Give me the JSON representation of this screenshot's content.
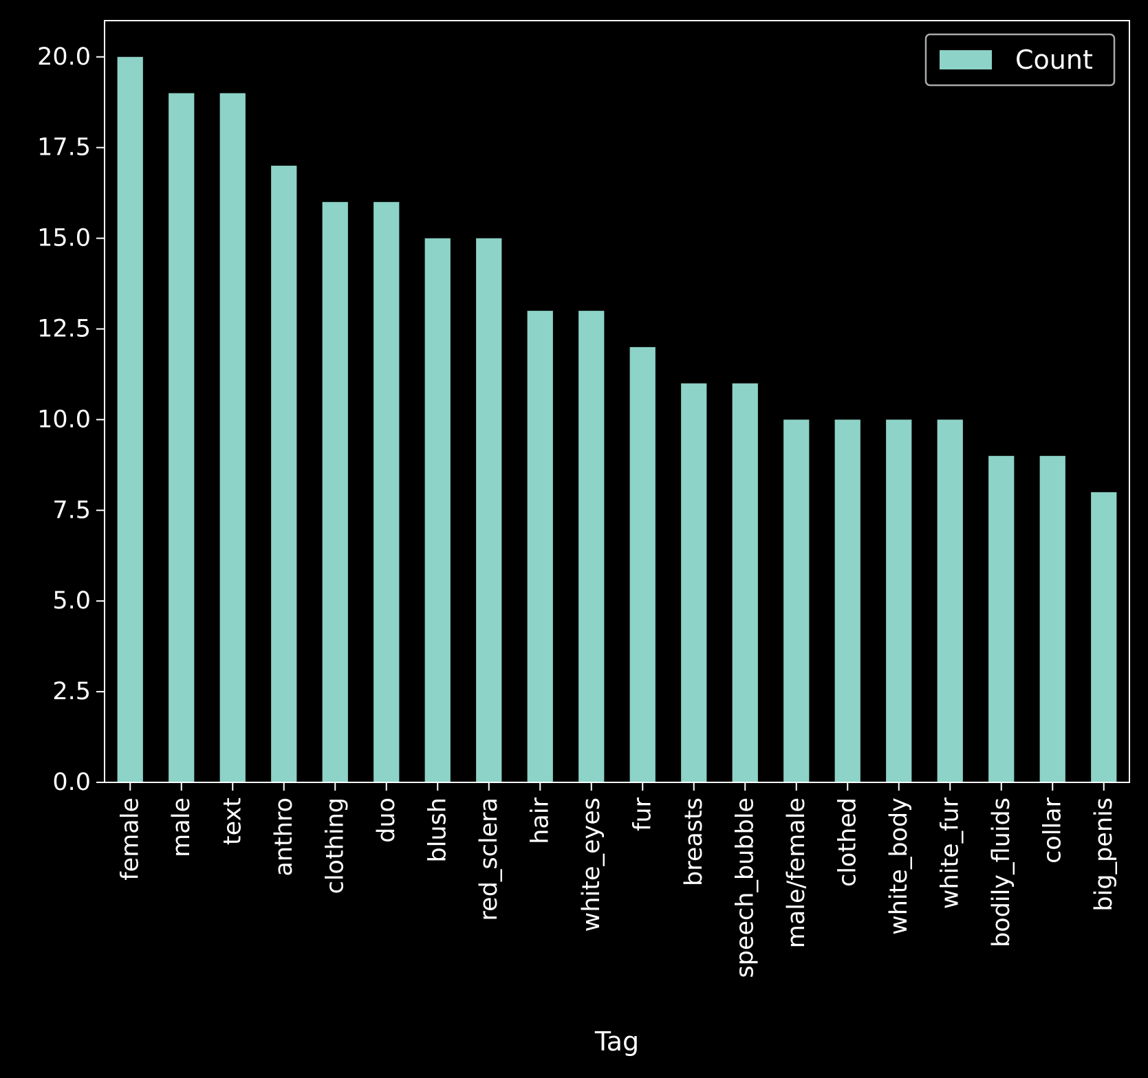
{
  "chart_data": {
    "type": "bar",
    "categories": [
      "female",
      "male",
      "text",
      "anthro",
      "clothing",
      "duo",
      "blush",
      "red_sclera",
      "hair",
      "white_eyes",
      "fur",
      "breasts",
      "speech_bubble",
      "male/female",
      "clothed",
      "white_body",
      "white_fur",
      "bodily_fluids",
      "collar",
      "big_penis"
    ],
    "series": [
      {
        "name": "Count",
        "values": [
          20,
          19,
          19,
          17,
          16,
          16,
          15,
          15,
          13,
          13,
          12,
          11,
          11,
          10,
          10,
          10,
          10,
          9,
          9,
          8
        ]
      }
    ],
    "xlabel": "Tag",
    "ylabel": "",
    "ylim": [
      0,
      21
    ],
    "yticks": [
      "0.0",
      "2.5",
      "5.0",
      "7.5",
      "10.0",
      "12.5",
      "15.0",
      "17.5",
      "20.0"
    ],
    "legend_position": "top-right",
    "grid": false,
    "colors": {
      "background": "#000000",
      "bar": "#8dd3c7",
      "axes": "#ffffff",
      "text": "#ffffff",
      "legend_border": "#aaaaaa"
    }
  }
}
